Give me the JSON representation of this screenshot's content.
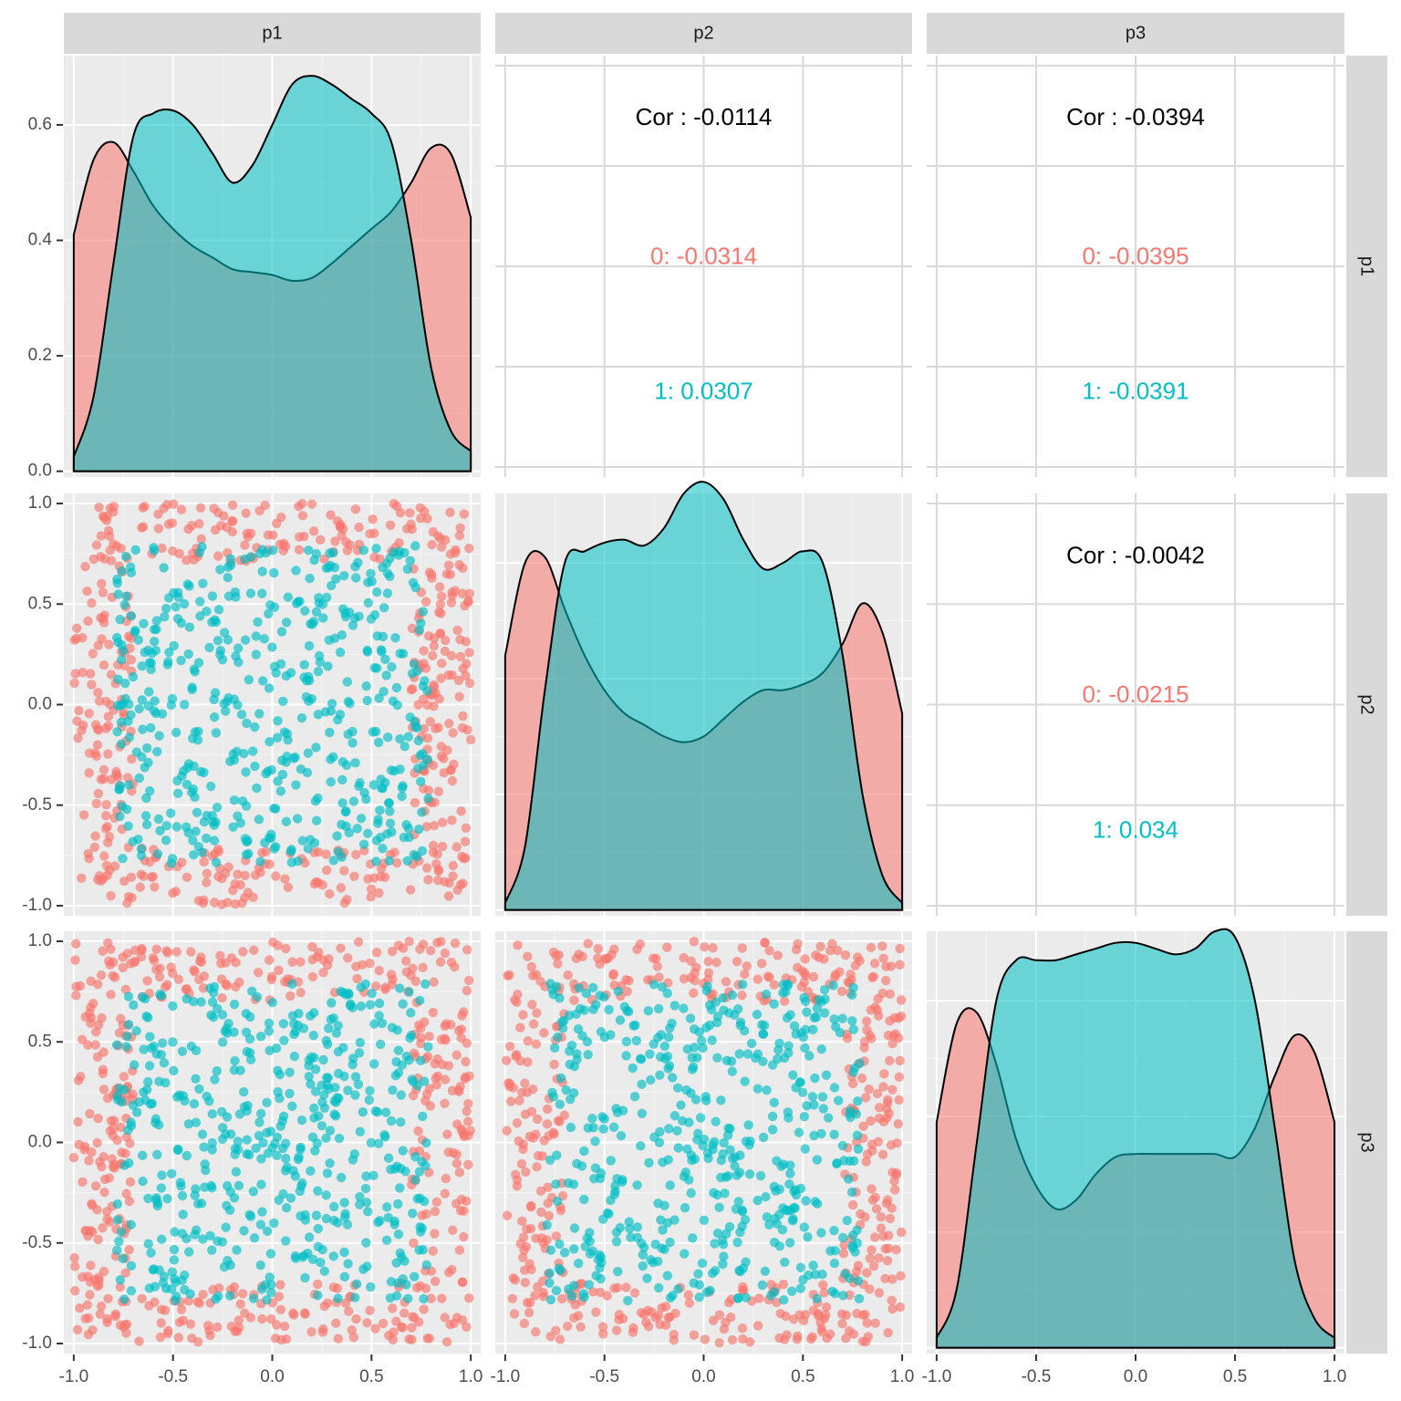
{
  "chart_data": {
    "type": "scatter-matrix",
    "variables": [
      "p1",
      "p2",
      "p3"
    ],
    "groups": [
      {
        "name": "0",
        "color": "#F8766D"
      },
      {
        "name": "1",
        "color": "#00BFC4"
      }
    ],
    "x_ticks": [
      "-1.0",
      "-0.5",
      "0.0",
      "0.5",
      "1.0"
    ],
    "x_tick_values": [
      -1.0,
      -0.5,
      0.0,
      0.5,
      1.0
    ],
    "xlim": [
      -1.05,
      1.05
    ],
    "y_ticks": [
      "-1.0",
      "-0.5",
      "0.0",
      "0.5",
      "1.0"
    ],
    "y_tick_values": [
      -1.0,
      -0.5,
      0.0,
      0.5,
      1.0
    ],
    "ylim": [
      -1.05,
      1.05
    ],
    "density_ticks": [
      "0.0",
      "0.2",
      "0.4",
      "0.6"
    ],
    "density_tick_values": [
      0.0,
      0.2,
      0.4,
      0.6
    ],
    "density_ylim": [
      -0.01,
      0.72
    ],
    "densities": [
      {
        "variable": "p1",
        "x": [
          -1.0,
          -0.9,
          -0.8,
          -0.7,
          -0.6,
          -0.5,
          -0.4,
          -0.3,
          -0.2,
          -0.1,
          0.0,
          0.1,
          0.2,
          0.3,
          0.4,
          0.5,
          0.6,
          0.7,
          0.8,
          0.9,
          1.0
        ],
        "group0": [
          0.41,
          0.54,
          0.57,
          0.52,
          0.46,
          0.42,
          0.39,
          0.37,
          0.35,
          0.345,
          0.34,
          0.33,
          0.335,
          0.36,
          0.39,
          0.42,
          0.45,
          0.5,
          0.56,
          0.55,
          0.44
        ],
        "group1": [
          0.025,
          0.13,
          0.36,
          0.58,
          0.62,
          0.625,
          0.6,
          0.55,
          0.5,
          0.53,
          0.6,
          0.67,
          0.685,
          0.67,
          0.645,
          0.62,
          0.57,
          0.4,
          0.18,
          0.07,
          0.035
        ]
      },
      {
        "variable": "p2",
        "x": [
          -1.0,
          -0.9,
          -0.8,
          -0.7,
          -0.6,
          -0.5,
          -0.4,
          -0.3,
          -0.2,
          -0.1,
          0.0,
          0.1,
          0.2,
          0.3,
          0.4,
          0.5,
          0.6,
          0.7,
          0.8,
          0.9,
          1.0
        ],
        "group0": [
          0.44,
          0.6,
          0.61,
          0.52,
          0.44,
          0.38,
          0.34,
          0.32,
          0.3,
          0.29,
          0.3,
          0.33,
          0.36,
          0.38,
          0.38,
          0.39,
          0.41,
          0.46,
          0.53,
          0.48,
          0.34
        ],
        "group1": [
          0.012,
          0.11,
          0.38,
          0.6,
          0.62,
          0.635,
          0.64,
          0.63,
          0.66,
          0.72,
          0.74,
          0.71,
          0.64,
          0.59,
          0.6,
          0.62,
          0.6,
          0.44,
          0.2,
          0.06,
          0.012
        ]
      },
      {
        "variable": "p3",
        "x": [
          -1.0,
          -0.9,
          -0.8,
          -0.7,
          -0.6,
          -0.5,
          -0.4,
          -0.3,
          -0.2,
          -0.1,
          0.0,
          0.1,
          0.2,
          0.3,
          0.4,
          0.5,
          0.6,
          0.7,
          0.8,
          0.9,
          1.0
        ],
        "group0": [
          0.39,
          0.56,
          0.58,
          0.49,
          0.36,
          0.28,
          0.24,
          0.255,
          0.3,
          0.33,
          0.335,
          0.335,
          0.335,
          0.335,
          0.335,
          0.33,
          0.38,
          0.47,
          0.54,
          0.51,
          0.39
        ],
        "group1": [
          0.017,
          0.1,
          0.35,
          0.6,
          0.67,
          0.67,
          0.67,
          0.68,
          0.69,
          0.7,
          0.7,
          0.69,
          0.68,
          0.69,
          0.72,
          0.71,
          0.6,
          0.38,
          0.15,
          0.05,
          0.017
        ]
      }
    ],
    "correlations": [
      {
        "row": "p1",
        "col": "p2",
        "overall_label": "Cor : -0.0114",
        "group0_label": "0: -0.0314",
        "group1_label": "1: 0.0307"
      },
      {
        "row": "p1",
        "col": "p3",
        "overall_label": "Cor : -0.0394",
        "group0_label": "0: -0.0395",
        "group1_label": "1: -0.0391"
      },
      {
        "row": "p2",
        "col": "p3",
        "overall_label": "Cor : -0.0042",
        "group0_label": "0: -0.0215",
        "group1_label": "1: 0.034"
      }
    ],
    "scatter_pairs": [
      {
        "row": "p2",
        "col": "p1",
        "points_per_group": 500
      },
      {
        "row": "p3",
        "col": "p1",
        "points_per_group": 500
      },
      {
        "row": "p3",
        "col": "p2",
        "points_per_group": 500
      }
    ],
    "grid": true,
    "legend": "none"
  }
}
